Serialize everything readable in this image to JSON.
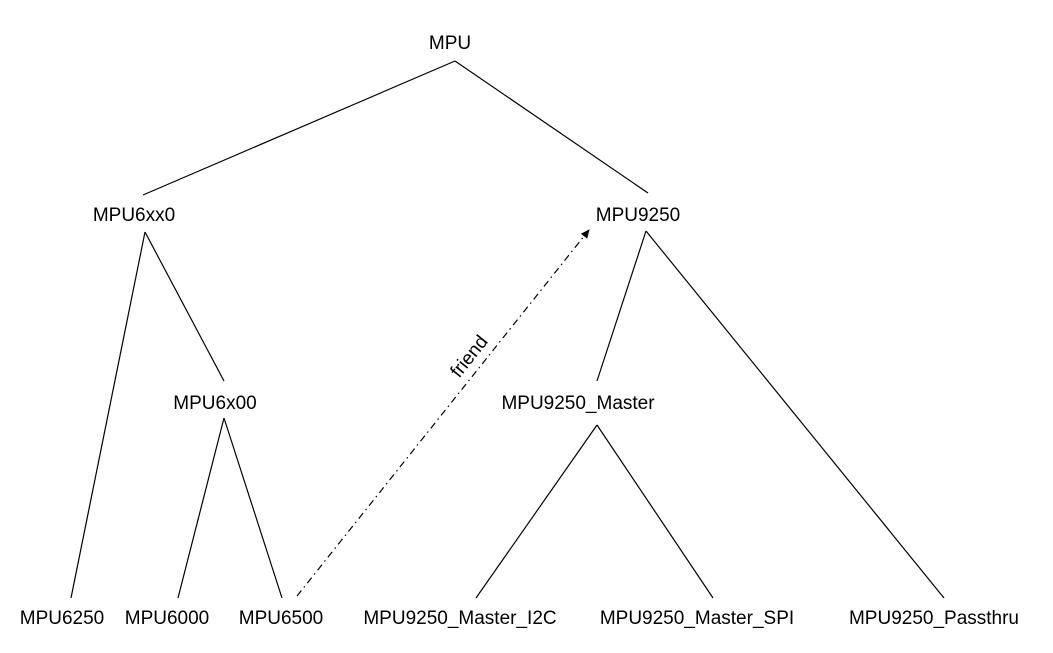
{
  "diagram": {
    "nodes": {
      "mpu": "MPU",
      "mpu6xx0": "MPU6xx0",
      "mpu9250": "MPU9250",
      "mpu6x00": "MPU6x00",
      "mpu9250_master": "MPU9250_Master",
      "mpu6250": "MPU6250",
      "mpu6000": "MPU6000",
      "mpu6500": "MPU6500",
      "mpu9250_master_i2c": "MPU9250_Master_I2C",
      "mpu9250_master_spi": "MPU9250_Master_SPI",
      "mpu9250_passthru": "MPU9250_Passthru"
    },
    "edges": [
      {
        "from": "MPU",
        "to": "MPU6xx0"
      },
      {
        "from": "MPU",
        "to": "MPU9250"
      },
      {
        "from": "MPU6xx0",
        "to": "MPU6250"
      },
      {
        "from": "MPU6xx0",
        "to": "MPU6x00"
      },
      {
        "from": "MPU6x00",
        "to": "MPU6000"
      },
      {
        "from": "MPU6x00",
        "to": "MPU6500"
      },
      {
        "from": "MPU9250",
        "to": "MPU9250_Master"
      },
      {
        "from": "MPU9250",
        "to": "MPU9250_Passthru"
      },
      {
        "from": "MPU9250_Master",
        "to": "MPU9250_Master_I2C"
      },
      {
        "from": "MPU9250_Master",
        "to": "MPU9250_Master_SPI"
      }
    ],
    "friend_edge": {
      "from": "MPU6500",
      "to": "MPU9250",
      "label": "friend",
      "style": "dash-dot",
      "arrow": "end"
    },
    "line_color": "#000000",
    "background": "#ffffff"
  }
}
